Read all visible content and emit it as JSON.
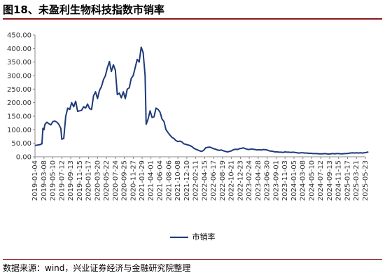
{
  "title": "图18、未盈利生物科技指数市销率",
  "source": "数据来源：wind，兴业证券经济与金融研究院整理",
  "chart_data": {
    "type": "line",
    "title": "图18、未盈利生物科技指数市销率",
    "xlabel": "",
    "ylabel": "",
    "ylim": [
      0,
      450
    ],
    "yticks": [
      "0.00",
      "50.00",
      "100.00",
      "150.00",
      "200.00",
      "250.00",
      "300.00",
      "350.00",
      "400.00",
      "450.00"
    ],
    "grid": false,
    "legend_position": "bottom",
    "x_tick_labels": [
      "2019-01-04",
      "2019-03-08",
      "2019-05-10",
      "2019-07-12",
      "2019-09-13",
      "2019-11-15",
      "2020-01-17",
      "2020-03-20",
      "2020-05-22",
      "2020-07-24",
      "2020-09-25",
      "2020-11-27",
      "2021-01-29",
      "2021-04-01",
      "2021-06-04",
      "2021-08-06",
      "2021-10-08",
      "2021-12-10",
      "2022-02-11",
      "2022-04-15",
      "2022-06-17",
      "2022-08-19",
      "2022-10-21",
      "2022-12-23",
      "2023-02-24",
      "2023-04-28",
      "2023-06-30",
      "2023-09-01",
      "2023-11-03",
      "2024-01-05",
      "2024-03-08",
      "2024-05-10",
      "2024-07-12",
      "2024-09-13",
      "2024-11-15",
      "2025-01-17",
      "2025-03-21",
      "2025-05-23"
    ],
    "series": [
      {
        "name": "市销率",
        "color": "#1f3a7a",
        "points": [
          [
            "2019-01-04",
            42
          ],
          [
            "2019-02-08",
            45
          ],
          [
            "2019-02-22",
            48
          ],
          [
            "2019-03-01",
            105
          ],
          [
            "2019-03-08",
            100
          ],
          [
            "2019-03-15",
            120
          ],
          [
            "2019-03-29",
            128
          ],
          [
            "2019-04-12",
            122
          ],
          [
            "2019-04-26",
            118
          ],
          [
            "2019-05-10",
            130
          ],
          [
            "2019-05-24",
            132
          ],
          [
            "2019-06-07",
            128
          ],
          [
            "2019-06-21",
            120
          ],
          [
            "2019-07-05",
            105
          ],
          [
            "2019-07-12",
            65
          ],
          [
            "2019-07-26",
            68
          ],
          [
            "2019-08-09",
            150
          ],
          [
            "2019-08-23",
            180
          ],
          [
            "2019-09-06",
            175
          ],
          [
            "2019-09-20",
            200
          ],
          [
            "2019-10-04",
            185
          ],
          [
            "2019-10-18",
            205
          ],
          [
            "2019-11-01",
            168
          ],
          [
            "2019-11-15",
            170
          ],
          [
            "2019-11-29",
            172
          ],
          [
            "2019-12-13",
            185
          ],
          [
            "2019-12-27",
            180
          ],
          [
            "2020-01-10",
            195
          ],
          [
            "2020-01-24",
            178
          ],
          [
            "2020-02-07",
            175
          ],
          [
            "2020-02-21",
            225
          ],
          [
            "2020-03-06",
            240
          ],
          [
            "2020-03-20",
            215
          ],
          [
            "2020-04-03",
            245
          ],
          [
            "2020-04-17",
            260
          ],
          [
            "2020-05-01",
            285
          ],
          [
            "2020-05-15",
            300
          ],
          [
            "2020-05-29",
            330
          ],
          [
            "2020-06-12",
            352
          ],
          [
            "2020-06-26",
            315
          ],
          [
            "2020-07-10",
            340
          ],
          [
            "2020-07-24",
            320
          ],
          [
            "2020-08-07",
            230
          ],
          [
            "2020-08-21",
            235
          ],
          [
            "2020-09-04",
            218
          ],
          [
            "2020-09-18",
            240
          ],
          [
            "2020-10-02",
            215
          ],
          [
            "2020-10-16",
            250
          ],
          [
            "2020-10-30",
            255
          ],
          [
            "2020-11-13",
            290
          ],
          [
            "2020-11-27",
            300
          ],
          [
            "2020-12-11",
            330
          ],
          [
            "2020-12-25",
            360
          ],
          [
            "2021-01-08",
            350
          ],
          [
            "2021-01-22",
            405
          ],
          [
            "2021-02-05",
            385
          ],
          [
            "2021-02-19",
            300
          ],
          [
            "2021-02-26",
            120
          ],
          [
            "2021-03-12",
            140
          ],
          [
            "2021-03-26",
            170
          ],
          [
            "2021-04-09",
            145
          ],
          [
            "2021-04-23",
            148
          ],
          [
            "2021-05-07",
            180
          ],
          [
            "2021-05-21",
            175
          ],
          [
            "2021-06-04",
            165
          ],
          [
            "2021-06-18",
            140
          ],
          [
            "2021-07-02",
            130
          ],
          [
            "2021-07-16",
            100
          ],
          [
            "2021-07-30",
            90
          ],
          [
            "2021-08-13",
            80
          ],
          [
            "2021-08-27",
            72
          ],
          [
            "2021-09-10",
            68
          ],
          [
            "2021-09-24",
            60
          ],
          [
            "2021-10-08",
            56
          ],
          [
            "2021-10-22",
            58
          ],
          [
            "2021-11-05",
            55
          ],
          [
            "2021-11-19",
            48
          ],
          [
            "2021-12-03",
            46
          ],
          [
            "2021-12-17",
            44
          ],
          [
            "2021-12-31",
            42
          ],
          [
            "2022-01-14",
            38
          ],
          [
            "2022-01-28",
            32
          ],
          [
            "2022-02-11",
            28
          ],
          [
            "2022-02-25",
            25
          ],
          [
            "2022-03-11",
            22
          ],
          [
            "2022-03-25",
            20
          ],
          [
            "2022-04-08",
            24
          ],
          [
            "2022-04-22",
            33
          ],
          [
            "2022-05-06",
            35
          ],
          [
            "2022-05-20",
            36
          ],
          [
            "2022-06-03",
            33
          ],
          [
            "2022-06-17",
            30
          ],
          [
            "2022-07-01",
            28
          ],
          [
            "2022-07-15",
            25
          ],
          [
            "2022-07-29",
            24
          ],
          [
            "2022-08-12",
            25
          ],
          [
            "2022-08-26",
            22
          ],
          [
            "2022-09-09",
            20
          ],
          [
            "2022-09-23",
            18
          ],
          [
            "2022-10-07",
            20
          ],
          [
            "2022-10-21",
            22
          ],
          [
            "2022-11-04",
            26
          ],
          [
            "2022-11-18",
            28
          ],
          [
            "2022-12-02",
            27
          ],
          [
            "2022-12-16",
            30
          ],
          [
            "2022-12-30",
            31
          ],
          [
            "2023-01-13",
            33
          ],
          [
            "2023-01-27",
            30
          ],
          [
            "2023-02-10",
            28
          ],
          [
            "2023-02-24",
            27
          ],
          [
            "2023-03-10",
            29
          ],
          [
            "2023-03-24",
            28
          ],
          [
            "2023-04-07",
            27
          ],
          [
            "2023-04-21",
            25
          ],
          [
            "2023-05-05",
            26
          ],
          [
            "2023-05-19",
            25
          ],
          [
            "2023-06-02",
            27
          ],
          [
            "2023-06-16",
            26
          ],
          [
            "2023-06-30",
            25
          ],
          [
            "2023-07-14",
            22
          ],
          [
            "2023-07-28",
            21
          ],
          [
            "2023-08-11",
            20
          ],
          [
            "2023-08-25",
            18
          ],
          [
            "2023-09-08",
            18
          ],
          [
            "2023-09-22",
            17
          ],
          [
            "2023-10-06",
            17
          ],
          [
            "2023-10-20",
            16
          ],
          [
            "2023-11-03",
            18
          ],
          [
            "2023-11-17",
            17
          ],
          [
            "2023-12-01",
            17
          ],
          [
            "2023-12-15",
            16
          ],
          [
            "2023-12-29",
            17
          ],
          [
            "2024-01-12",
            16
          ],
          [
            "2024-01-26",
            15
          ],
          [
            "2024-02-09",
            14
          ],
          [
            "2024-02-23",
            15
          ],
          [
            "2024-03-08",
            15
          ],
          [
            "2024-03-22",
            14
          ],
          [
            "2024-04-05",
            14
          ],
          [
            "2024-04-19",
            13
          ],
          [
            "2024-05-03",
            13
          ],
          [
            "2024-05-17",
            12
          ],
          [
            "2024-05-31",
            12
          ],
          [
            "2024-06-14",
            12
          ],
          [
            "2024-06-28",
            11
          ],
          [
            "2024-07-12",
            11
          ],
          [
            "2024-07-26",
            11
          ],
          [
            "2024-08-09",
            12
          ],
          [
            "2024-08-23",
            11
          ],
          [
            "2024-09-06",
            10
          ],
          [
            "2024-09-20",
            11
          ],
          [
            "2024-10-04",
            12
          ],
          [
            "2024-10-18",
            11
          ],
          [
            "2024-11-01",
            12
          ],
          [
            "2024-11-15",
            12
          ],
          [
            "2024-11-29",
            11
          ],
          [
            "2024-12-13",
            11
          ],
          [
            "2024-12-27",
            12
          ],
          [
            "2025-01-10",
            12
          ],
          [
            "2025-01-24",
            13
          ],
          [
            "2025-02-07",
            14
          ],
          [
            "2025-02-21",
            15
          ],
          [
            "2025-03-07",
            14
          ],
          [
            "2025-03-21",
            15
          ],
          [
            "2025-04-04",
            14
          ],
          [
            "2025-04-18",
            15
          ],
          [
            "2025-05-02",
            14
          ],
          [
            "2025-05-16",
            15
          ],
          [
            "2025-05-30",
            16
          ],
          [
            "2025-06-13",
            18
          ]
        ]
      }
    ]
  }
}
